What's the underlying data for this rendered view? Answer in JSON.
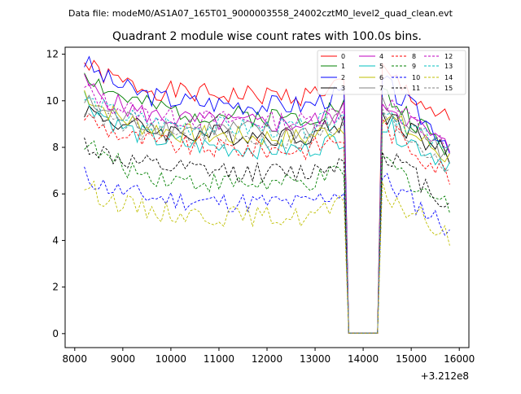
{
  "figure": {
    "suptitle": "Data file: modeM0/AS1A07_165T01_9000003558_24002cztM0_level2_quad_clean.evt"
  },
  "chart_data": {
    "type": "line",
    "title": "Quadrant 2 module wise count rates with 100.0s bins.",
    "xlabel": "",
    "ylabel": "",
    "x_offset_label": "+3.212e8",
    "xlim": [
      7800,
      16200
    ],
    "ylim": [
      -0.6,
      12.3
    ],
    "x_ticks": [
      8000,
      9000,
      10000,
      11000,
      12000,
      13000,
      14000,
      15000,
      16000
    ],
    "x_tick_labels": [
      "8000",
      "9000",
      "10000",
      "11000",
      "12000",
      "13000",
      "14000",
      "15000",
      "16000"
    ],
    "y_ticks": [
      0,
      2,
      4,
      6,
      8,
      10,
      12
    ],
    "y_tick_labels": [
      "0",
      "2",
      "4",
      "6",
      "8",
      "10",
      "12"
    ],
    "grid": false,
    "legend_placement": "top-right",
    "legend_columns": 4,
    "x_start": 8200,
    "x_step": 100,
    "x_end": 15800,
    "gap_x_range": [
      13700,
      14300
    ],
    "series": [
      {
        "name": "0",
        "color": "#ff0000",
        "dashed": false,
        "base": 10.2,
        "start": 11.6,
        "endv": 9.0,
        "seed": 1
      },
      {
        "name": "1",
        "color": "#008000",
        "dashed": false,
        "base": 9.3,
        "start": 11.3,
        "endv": 7.8,
        "seed": 2
      },
      {
        "name": "2",
        "color": "#0000ff",
        "dashed": false,
        "base": 9.8,
        "start": 11.7,
        "endv": 8.2,
        "seed": 3
      },
      {
        "name": "3",
        "color": "#000000",
        "dashed": false,
        "base": 8.5,
        "start": 9.7,
        "endv": 7.6,
        "seed": 4
      },
      {
        "name": "4",
        "color": "#bf00bf",
        "dashed": false,
        "base": 9.0,
        "start": 10.8,
        "endv": 7.9,
        "seed": 5
      },
      {
        "name": "5",
        "color": "#00bfbf",
        "dashed": false,
        "base": 7.9,
        "start": 10.2,
        "endv": 7.3,
        "seed": 6
      },
      {
        "name": "6",
        "color": "#bfbf00",
        "dashed": false,
        "base": 8.4,
        "start": 10.4,
        "endv": 7.5,
        "seed": 7
      },
      {
        "name": "7",
        "color": "#808080",
        "dashed": false,
        "base": 8.7,
        "start": 10.0,
        "endv": 7.7,
        "seed": 8
      },
      {
        "name": "8",
        "color": "#ff0000",
        "dashed": true,
        "base": 7.9,
        "start": 9.4,
        "endv": 6.8,
        "seed": 9
      },
      {
        "name": "9",
        "color": "#008000",
        "dashed": true,
        "base": 6.4,
        "start": 8.3,
        "endv": 5.4,
        "seed": 10
      },
      {
        "name": "10",
        "color": "#0000ff",
        "dashed": true,
        "base": 5.6,
        "start": 6.8,
        "endv": 4.5,
        "seed": 11
      },
      {
        "name": "11",
        "color": "#000000",
        "dashed": true,
        "base": 6.9,
        "start": 8.2,
        "endv": 5.5,
        "seed": 12
      },
      {
        "name": "12",
        "color": "#bf00bf",
        "dashed": true,
        "base": 9.1,
        "start": 10.5,
        "endv": 7.8,
        "seed": 13
      },
      {
        "name": "13",
        "color": "#00bfbf",
        "dashed": true,
        "base": 8.8,
        "start": 10.1,
        "endv": 7.6,
        "seed": 14
      },
      {
        "name": "14",
        "color": "#bfbf00",
        "dashed": true,
        "base": 5.0,
        "start": 6.4,
        "endv": 4.1,
        "seed": 15
      },
      {
        "name": "15",
        "color": "#808080",
        "dashed": true,
        "base": 8.3,
        "start": 9.8,
        "endv": 7.2,
        "seed": 16
      }
    ]
  }
}
